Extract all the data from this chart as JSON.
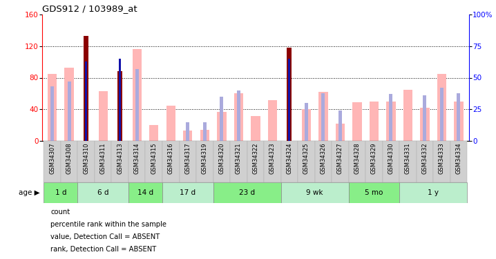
{
  "title": "GDS912 / 103989_at",
  "samples": [
    "GSM34307",
    "GSM34308",
    "GSM34310",
    "GSM34311",
    "GSM34313",
    "GSM34314",
    "GSM34315",
    "GSM34316",
    "GSM34317",
    "GSM34319",
    "GSM34320",
    "GSM34321",
    "GSM34322",
    "GSM34323",
    "GSM34324",
    "GSM34325",
    "GSM34326",
    "GSM34327",
    "GSM34328",
    "GSM34329",
    "GSM34330",
    "GSM34331",
    "GSM34332",
    "GSM34333",
    "GSM34334"
  ],
  "value_absent": [
    85,
    93,
    0,
    63,
    0,
    116,
    20,
    45,
    13,
    14,
    37,
    60,
    32,
    52,
    0,
    40,
    62,
    22,
    49,
    50,
    50,
    65,
    42,
    85,
    50
  ],
  "rank_absent_pct": [
    43,
    47,
    0,
    0,
    0,
    57,
    0,
    0,
    15,
    15,
    35,
    40,
    0,
    0,
    0,
    30,
    38,
    24,
    0,
    0,
    37,
    0,
    36,
    42,
    38
  ],
  "count_value": [
    0,
    0,
    133,
    0,
    88,
    0,
    0,
    0,
    0,
    0,
    0,
    0,
    0,
    0,
    118,
    0,
    0,
    0,
    0,
    0,
    0,
    0,
    0,
    0,
    0
  ],
  "count_rank_pct": [
    0,
    0,
    63,
    0,
    65,
    0,
    0,
    0,
    0,
    0,
    0,
    0,
    0,
    0,
    65,
    0,
    0,
    0,
    0,
    0,
    0,
    0,
    0,
    0,
    0
  ],
  "age_groups": [
    {
      "label": "1 d",
      "start": 0,
      "end": 2
    },
    {
      "label": "6 d",
      "start": 2,
      "end": 5
    },
    {
      "label": "14 d",
      "start": 5,
      "end": 7
    },
    {
      "label": "17 d",
      "start": 7,
      "end": 10
    },
    {
      "label": "23 d",
      "start": 10,
      "end": 14
    },
    {
      "label": "9 wk",
      "start": 14,
      "end": 18
    },
    {
      "label": "5 mo",
      "start": 18,
      "end": 21
    },
    {
      "label": "1 y",
      "start": 21,
      "end": 25
    }
  ],
  "ylim_left": [
    0,
    160
  ],
  "ylim_right": [
    0,
    100
  ],
  "yticks_left": [
    0,
    40,
    80,
    120,
    160
  ],
  "yticks_right": [
    0,
    25,
    50,
    75,
    100
  ],
  "color_count": "#8B0000",
  "color_rank_count": "#1111AA",
  "color_value_absent": "#FFB6B6",
  "color_rank_absent": "#AAAADD",
  "age_colors": [
    "#88EE88",
    "#BBEECC",
    "#88EE88",
    "#BBEECC",
    "#88EE88",
    "#BBEECC",
    "#88EE88",
    "#BBEECC"
  ],
  "xtick_bg": "#D0D0D0"
}
